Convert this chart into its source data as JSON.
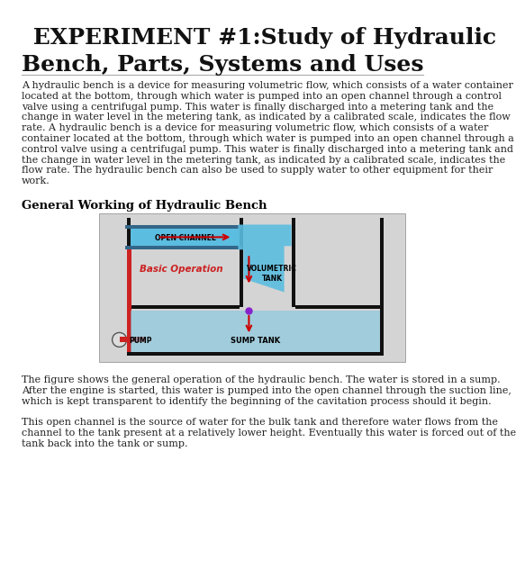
{
  "title_line1": " EXPERIMENT #1:Study of Hydraulic",
  "title_line2": "Bench, Parts, Systems and Uses",
  "body_text_1_lines": [
    "A hydraulic bench is a device for measuring volumetric flow, which consists of a water container",
    "located at the bottom, through which water is pumped into an open channel through a control",
    "valve using a centrifugal pump. This water is finally discharged into a metering tank and the",
    "change in water level in the metering tank, as indicated by a calibrated scale, indicates the flow",
    "rate. A hydraulic bench is a device for measuring volumetric flow, which consists of a water",
    "container located at the bottom, through which water is pumped into an open channel through a",
    "control valve using a centrifugal pump. This water is finally discharged into a metering tank and",
    "the change in water level in the metering tank, as indicated by a calibrated scale, indicates the",
    "flow rate. The hydraulic bench can also be used to supply water to other equipment for their",
    "work."
  ],
  "section_heading": "General Working of Hydraulic Bench",
  "open_channel_label": "OPEN CHANNEL",
  "volumetric_tank_label": "VOLUMETRIC\nTANK",
  "sump_tank_label": "SUMP TANK",
  "pump_label": "PUMP",
  "basic_op_label": "Basic Operation",
  "caption_lines": [
    "The figure shows the general operation of the hydraulic bench. The water is stored in a sump.",
    "After the engine is started, this water is pumped into the open channel through the suction line,",
    "which is kept transparent to identify the beginning of the cavitation process should it begin."
  ],
  "body_text_2_lines": [
    "This open channel is the source of water for the bulk tank and therefore water flows from the",
    "channel to the tank present at a relatively lower height. Eventually this water is forced out of the",
    "tank back into the tank or sump."
  ],
  "bg_color": "#ffffff",
  "title_color": "#111111",
  "text_color": "#222222",
  "heading_color": "#000000",
  "line_color": "#aaaaaa",
  "diagram_bg": "#d4d4d4",
  "water_color": "#5bbde0",
  "sump_water_color": "#80c8e0",
  "arrow_color": "#cc0000",
  "pipe_color": "#cc2222",
  "wall_color": "#111111",
  "channel_color": "#4488aa",
  "pump_fill": "#dddddd",
  "pump_edge": "#555555",
  "basic_op_color": "#cc2222",
  "purple_dot": "#8822cc",
  "title_fontsize": 18,
  "body_fontsize": 8.0,
  "heading_fontsize": 9.5,
  "caption_fontsize": 8.0
}
